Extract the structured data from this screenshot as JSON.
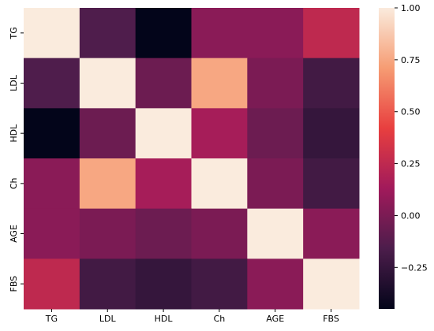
{
  "chart_data": {
    "type": "heatmap",
    "x_labels": [
      "TG",
      "LDL",
      "HDL",
      "Ch",
      "AGE",
      "FBS"
    ],
    "y_labels": [
      "TG",
      "LDL",
      "HDL",
      "Ch",
      "AGE",
      "FBS"
    ],
    "values": [
      [
        1.0,
        -0.15,
        -0.45,
        0.05,
        0.05,
        0.25
      ],
      [
        -0.15,
        1.0,
        -0.05,
        0.75,
        0.0,
        -0.2
      ],
      [
        -0.45,
        -0.05,
        1.0,
        0.15,
        -0.05,
        -0.25
      ],
      [
        0.05,
        0.75,
        0.15,
        1.0,
        0.0,
        -0.2
      ],
      [
        0.05,
        0.0,
        -0.05,
        0.0,
        1.0,
        0.05
      ],
      [
        0.25,
        -0.2,
        -0.25,
        -0.2,
        0.05,
        1.0
      ]
    ],
    "colorbar": {
      "ticks": [
        1.0,
        0.75,
        0.5,
        0.25,
        0.0,
        -0.25
      ],
      "tick_labels": [
        "1.00",
        "0.75",
        "0.50",
        "0.25",
        "0.00",
        "−0.25"
      ],
      "vmin": -0.45,
      "vmax": 1.0,
      "colormap": "rocket",
      "colormap_stops": [
        "#03051a",
        "#4c1d4b",
        "#a11a5b",
        "#e83f3f",
        "#f69c73",
        "#faebdd"
      ]
    },
    "grid": false
  }
}
